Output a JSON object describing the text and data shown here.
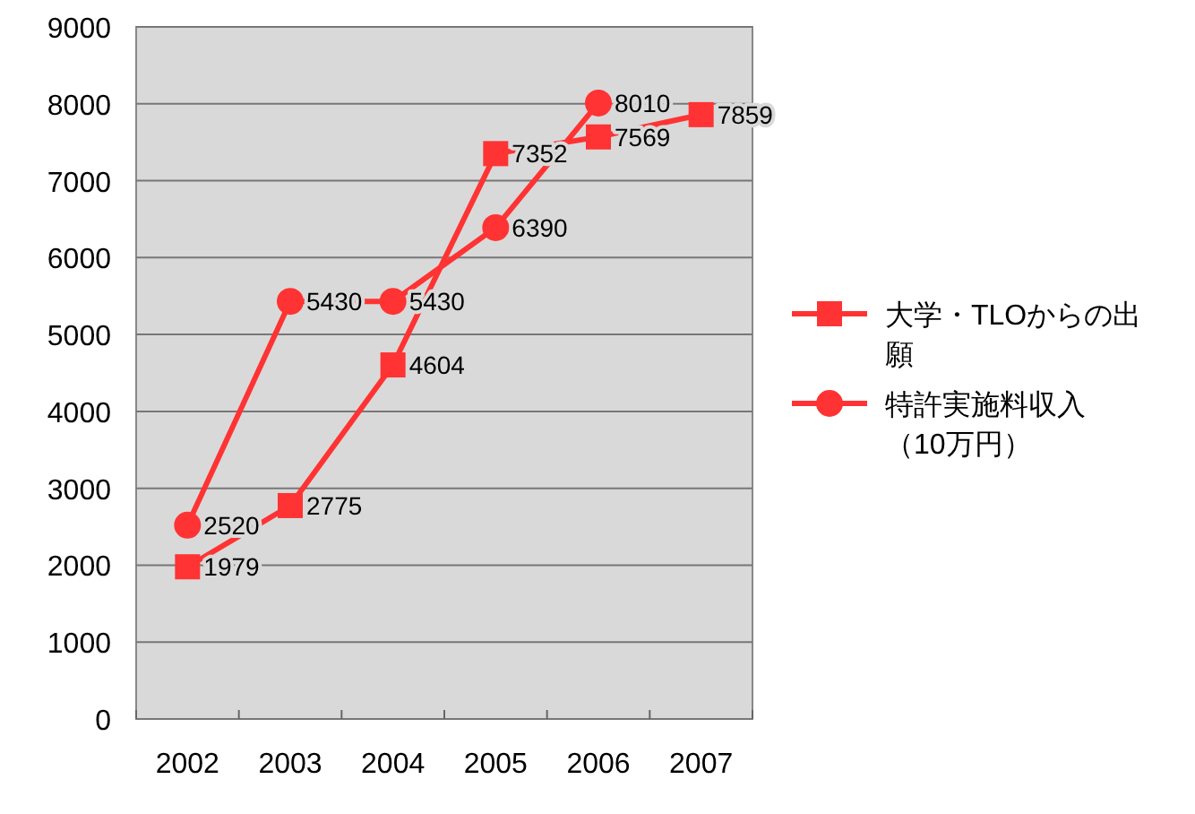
{
  "chart_data": {
    "type": "line",
    "categories": [
      "2002",
      "2003",
      "2004",
      "2005",
      "2006",
      "2007"
    ],
    "series": [
      {
        "name": "大学・TLOからの出願",
        "color": "#ff3333",
        "marker": "square",
        "values": [
          1979,
          2775,
          4604,
          7352,
          7569,
          7859
        ]
      },
      {
        "name": "特許実施料収入（10万円）",
        "color": "#ff3333",
        "marker": "circle",
        "values": [
          2520,
          5430,
          5430,
          6390,
          8010,
          null
        ]
      }
    ],
    "ylim": [
      0,
      9000
    ],
    "yticks": [
      0,
      1000,
      2000,
      3000,
      4000,
      5000,
      6000,
      7000,
      8000,
      9000
    ],
    "grid": "y",
    "legend": "right",
    "data_labels": true,
    "line_style": "solid"
  }
}
